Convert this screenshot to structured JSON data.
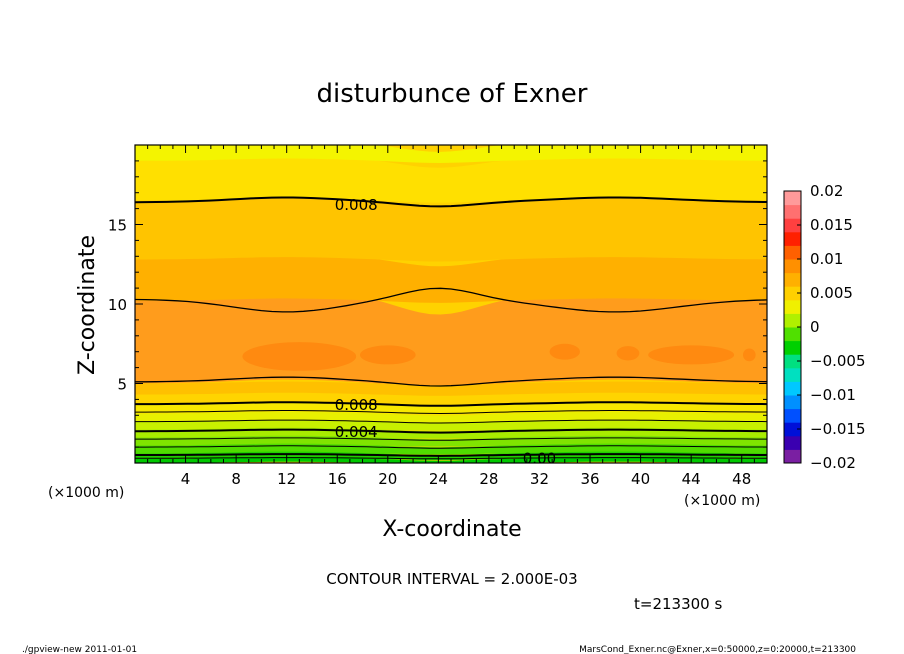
{
  "chart_data": {
    "type": "contour",
    "title": "disturbunce of Exner",
    "xlabel": "X-coordinate",
    "ylabel": "Z-coordinate",
    "x_unit_left": "(×1000 m)",
    "x_unit_right": "(×1000 m)",
    "xlim": [
      0,
      50
    ],
    "ylim": [
      0,
      20
    ],
    "xticks": [
      4,
      8,
      12,
      16,
      20,
      24,
      28,
      32,
      36,
      40,
      44,
      48
    ],
    "yticks": [
      5,
      10,
      15
    ],
    "contour_interval_text": "CONTOUR INTERVAL = 2.000E-03",
    "time_text": "t=213300 s",
    "contour_labels": [
      {
        "text": "0.008",
        "x": 17.5,
        "z": 16.3
      },
      {
        "text": "0.008",
        "x": 17.5,
        "z": 3.7
      },
      {
        "text": "0.004",
        "x": 17.5,
        "z": 2.0
      },
      {
        "text": "0.00",
        "x": 32,
        "z": 0.35
      }
    ],
    "colorbar": {
      "ticks": [
        "0.02",
        "0.015",
        "0.01",
        "0.005",
        "0",
        "−0.005",
        "−0.01",
        "−0.015",
        "−0.02"
      ],
      "min": -0.02,
      "max": 0.02,
      "colors": [
        "#7a1fa2",
        "#3a00b0",
        "#0010d8",
        "#0050ff",
        "#0090ff",
        "#00c8ff",
        "#00e0c0",
        "#00e080",
        "#00d000",
        "#50e000",
        "#b0f000",
        "#f0f000",
        "#ffd000",
        "#ffb000",
        "#ff9000",
        "#ff6000",
        "#ff2000",
        "#ff4040",
        "#ff7070",
        "#ff9a9a"
      ]
    },
    "field_bands": [
      {
        "level": 0.0105,
        "z": [
          5.0,
          10.2
        ],
        "color": "#ff9c1c"
      },
      {
        "level": 0.0095,
        "z": [
          10.2,
          12.8
        ],
        "color": "#ffb000"
      },
      {
        "level": 0.009,
        "z": [
          12.8,
          16.5
        ],
        "color": "#ffc400"
      },
      {
        "level": 0.007,
        "z": [
          16.5,
          19.0
        ],
        "color": "#ffe000"
      },
      {
        "level": 0.005,
        "z": [
          19.0,
          20.0
        ],
        "color": "#f4f400"
      }
    ]
  },
  "footer": {
    "left": "./gpview-new   2011-01-01",
    "right": "MarsCond_Exner.nc@Exner,x=0:50000,z=0:20000,t=213300"
  }
}
